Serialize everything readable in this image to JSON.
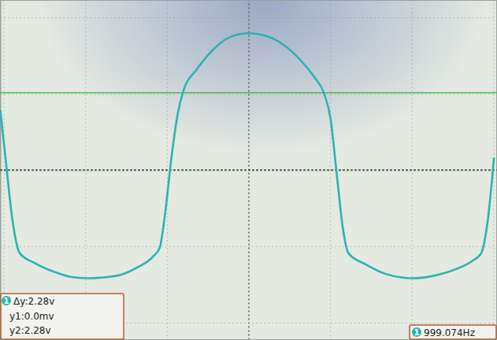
{
  "chart_data": {
    "type": "line",
    "x": [
      -0.76,
      -0.742,
      -0.723,
      -0.701,
      -0.653,
      -0.593,
      -0.545,
      -0.496,
      -0.448,
      -0.388,
      -0.34,
      -0.292,
      -0.272,
      -0.255,
      -0.236,
      -0.217,
      -0.2,
      -0.159,
      -0.111,
      -0.063,
      0,
      0.058,
      0.106,
      0.154,
      0.202,
      0.231,
      0.251,
      0.27,
      0.289,
      0.306,
      0.359,
      0.419,
      0.504,
      0.576,
      0.636,
      0.684,
      0.713,
      0.733,
      0.752
    ],
    "values": [
      1.76,
      0.14,
      -1.48,
      -2.45,
      -2.75,
      -3.01,
      -3.15,
      -3.19,
      -3.17,
      -3.08,
      -2.87,
      -2.55,
      -2.29,
      -1.25,
      0.37,
      1.64,
      2.32,
      2.96,
      3.52,
      3.89,
      4.03,
      3.94,
      3.7,
      3.29,
      2.73,
      2.27,
      1.53,
      -0.09,
      -1.71,
      -2.45,
      -2.78,
      -3.06,
      -3.19,
      -3.1,
      -2.92,
      -2.69,
      -2.45,
      -1.48,
      0.37
    ],
    "color": "#2bb3b3",
    "xlim": [
      -0.76,
      0.76
    ],
    "ylim": [
      -5,
      5
    ],
    "xticks": [
      -0.75,
      -0.5,
      -0.25,
      0,
      0.25,
      0.5,
      0.75
    ],
    "yticks": [
      -4.5,
      -2.25,
      0,
      2.25,
      4.5
    ],
    "grid": true,
    "tick_labels": false,
    "cursors": [
      {
        "text": "y1:0.0mv",
        "value": 0
      },
      {
        "text": "y2:2.28v",
        "value": 2.28
      }
    ],
    "delta": {
      "channel": "1",
      "text": "Δy:2.28v"
    },
    "frequency": {
      "channel": "1",
      "text": "999.074Hz"
    }
  }
}
